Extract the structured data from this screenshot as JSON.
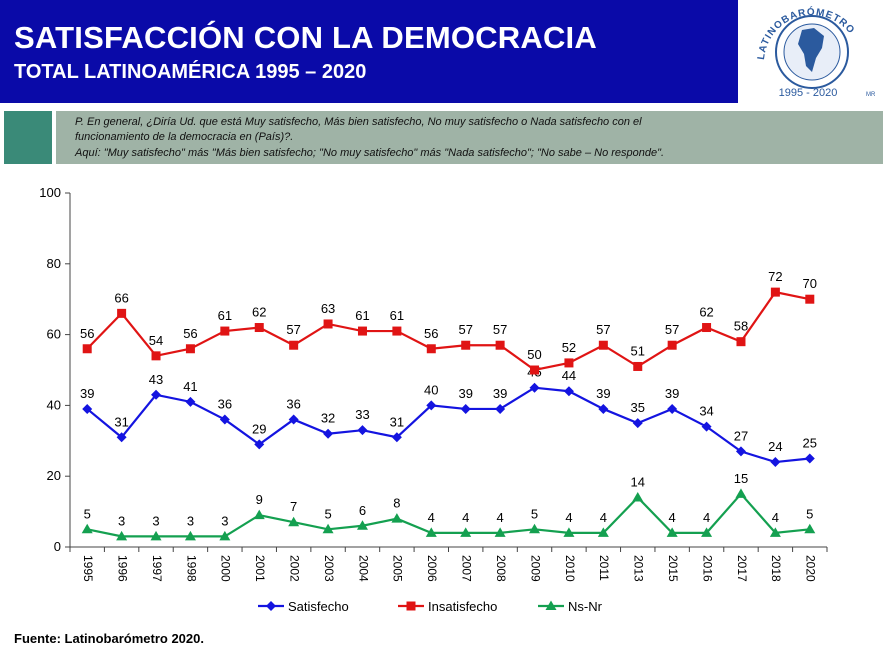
{
  "header": {
    "title": "SATISFACCIÓN CON LA DEMOCRACIA",
    "subtitle": "TOTAL LATINOAMÉRICA 1995 – 2020",
    "background_color": "#0a0aa8"
  },
  "logo": {
    "text": "LATINOBARÓMETRO",
    "years": "1995 - 2020",
    "mark": "MR"
  },
  "question": {
    "line1": "P. En general, ¿Diría Ud. que está Muy satisfecho, Más bien satisfecho, No muy satisfecho o Nada satisfecho con el",
    "line2": "funcionamiento de la democracia en (País)?.",
    "line3": "Aquí: \"Muy satisfecho\" más \"Más bien satisfecho; \"No muy satisfecho\" más \"Nada satisfecho\"; \"No sabe – No responde\"."
  },
  "chart_data": {
    "type": "line",
    "categories": [
      "1995",
      "1996",
      "1997",
      "1998",
      "2000",
      "2001",
      "2002",
      "2003",
      "2004",
      "2005",
      "2006",
      "2007",
      "2008",
      "2009",
      "2010",
      "2011",
      "2013",
      "2015",
      "2016",
      "2017",
      "2018",
      "2020"
    ],
    "series": [
      {
        "name": "Satisfecho",
        "color": "#1414e0",
        "marker": "diamond",
        "values": [
          39,
          31,
          43,
          41,
          36,
          29,
          36,
          32,
          33,
          31,
          40,
          39,
          39,
          45,
          44,
          39,
          35,
          39,
          34,
          27,
          24,
          25
        ]
      },
      {
        "name": "Insatisfecho",
        "color": "#e01414",
        "marker": "square",
        "values": [
          56,
          66,
          54,
          56,
          61,
          62,
          57,
          63,
          61,
          61,
          56,
          57,
          57,
          50,
          52,
          57,
          51,
          57,
          62,
          58,
          72,
          70
        ]
      },
      {
        "name": "Ns-Nr",
        "color": "#14a050",
        "marker": "triangle",
        "values": [
          5,
          3,
          3,
          3,
          3,
          9,
          7,
          5,
          6,
          8,
          4,
          4,
          4,
          5,
          4,
          4,
          14,
          4,
          4,
          15,
          4,
          5
        ]
      }
    ],
    "ylim": [
      0,
      100
    ],
    "yticks": [
      0,
      20,
      40,
      60,
      80,
      100
    ],
    "grid": false,
    "legend": "bottom"
  },
  "source": "Fuente: Latinobarómetro 2020."
}
